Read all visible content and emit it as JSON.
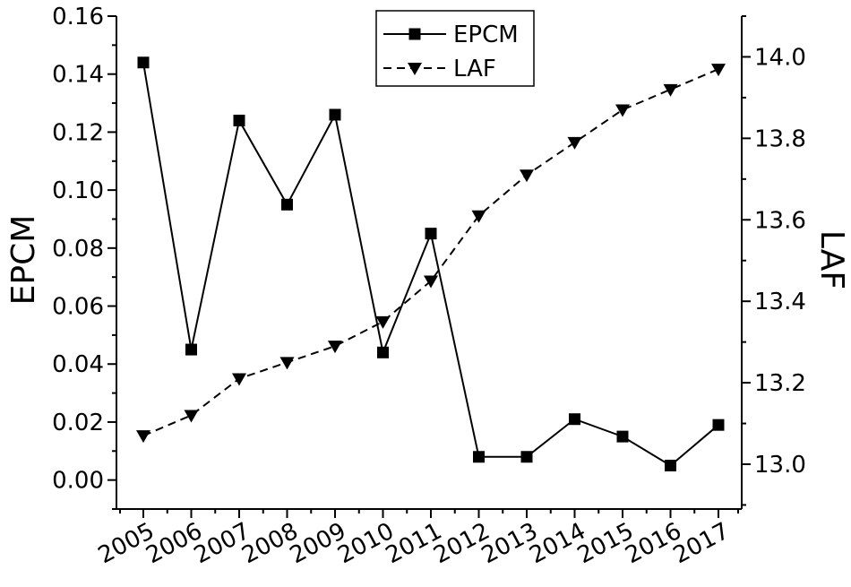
{
  "chart_data": {
    "type": "line",
    "x": [
      "2005",
      "2006",
      "2007",
      "2008",
      "2009",
      "2010",
      "2011",
      "2012",
      "2013",
      "2014",
      "2015",
      "2016",
      "2017"
    ],
    "series": [
      {
        "name": "EPCM",
        "axis": "left",
        "marker": "square",
        "line": "solid",
        "values": [
          0.144,
          0.045,
          0.124,
          0.095,
          0.126,
          0.044,
          0.085,
          0.008,
          0.008,
          0.021,
          0.015,
          0.005,
          0.019
        ]
      },
      {
        "name": "LAF",
        "axis": "right",
        "marker": "triangle-down",
        "line": "dashed",
        "values": [
          13.07,
          13.12,
          13.21,
          13.25,
          13.29,
          13.35,
          13.45,
          13.61,
          13.71,
          13.79,
          13.87,
          13.92,
          13.97
        ]
      }
    ],
    "y_left": {
      "label": "EPCM",
      "ylim": [
        -0.01,
        0.16
      ],
      "ticks": [
        "0.00",
        "0.02",
        "0.04",
        "0.06",
        "0.08",
        "0.10",
        "0.12",
        "0.14",
        "0.16"
      ]
    },
    "y_right": {
      "label": "LAF",
      "ylim": [
        12.89,
        14.1
      ],
      "ticks": [
        "13.0",
        "13.2",
        "13.4",
        "13.6",
        "13.8",
        "14.0"
      ]
    },
    "xlabel": "",
    "title": "",
    "grid": false,
    "legend_position": "top-center",
    "colors": {
      "line": "#000000",
      "background": "#ffffff"
    }
  }
}
